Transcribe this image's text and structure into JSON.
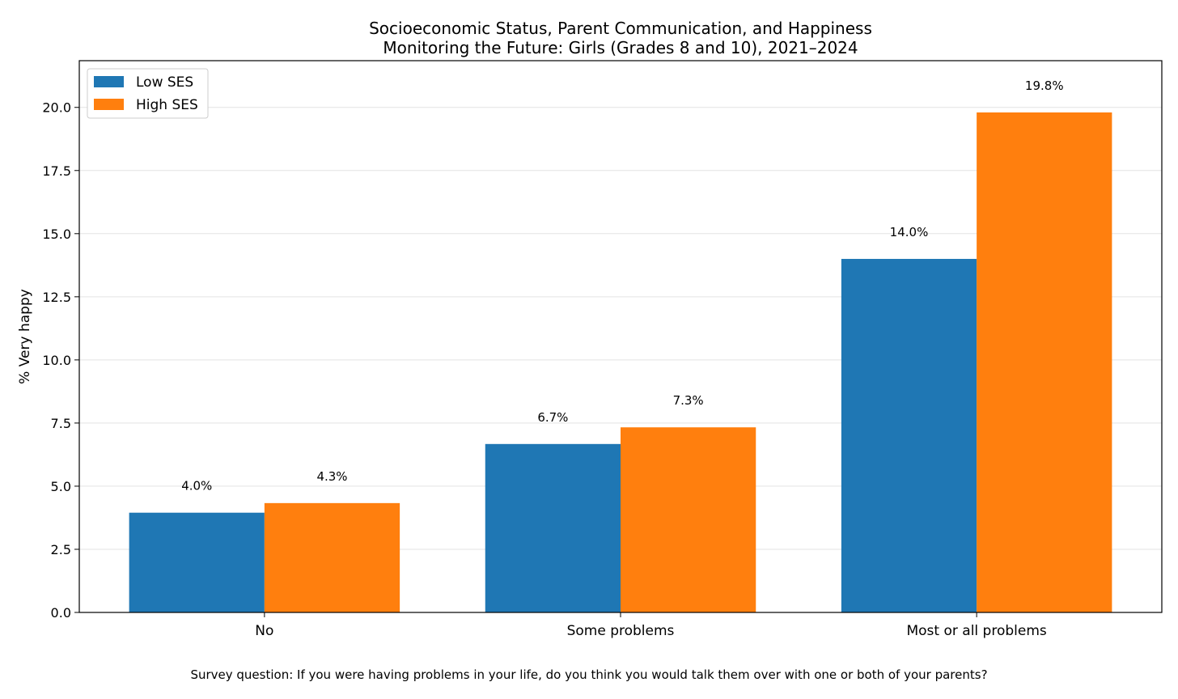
{
  "chart_data": {
    "type": "bar",
    "title": "Socioeconomic Status, Parent Communication, and Happiness",
    "subtitle": "Monitoring the Future: Girls (Grades 8 and 10), 2021–2024",
    "xlabel": "",
    "ylabel": "% Very happy",
    "ylim": [
      0,
      21.85
    ],
    "yticks": [
      "0.0",
      "2.5",
      "5.0",
      "7.5",
      "10.0",
      "12.5",
      "15.0",
      "17.5",
      "20.0"
    ],
    "grid": "y",
    "legend_position": "top-left",
    "categories": [
      "No",
      "Some problems",
      "Most or all problems"
    ],
    "series": [
      {
        "name": "Low SES",
        "color": "#1f77b4",
        "values": [
          3.95,
          6.67,
          14.0
        ],
        "labels": [
          "4.0%",
          "6.7%",
          "14.0%"
        ]
      },
      {
        "name": "High SES",
        "color": "#ff7f0e",
        "values": [
          4.33,
          7.33,
          19.8
        ],
        "labels": [
          "4.3%",
          "7.3%",
          "19.8%"
        ]
      }
    ],
    "footnote": "Survey question: If you were having problems in your life, do you think you would talk them over with one or both of your parents?"
  }
}
